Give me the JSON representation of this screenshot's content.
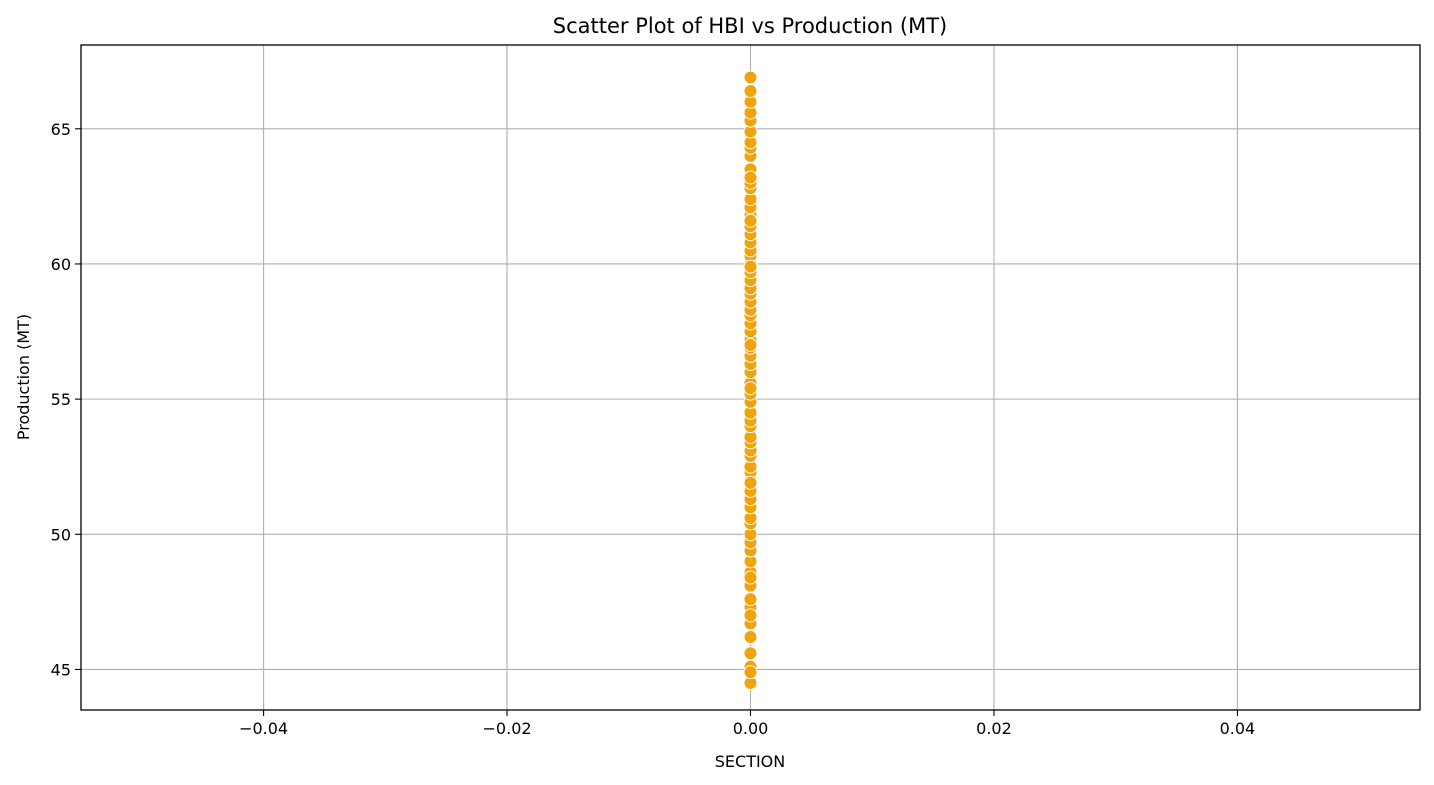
{
  "chart_data": {
    "type": "scatter",
    "title": "Scatter Plot of HBI vs Production (MT)",
    "xlabel": "SECTION",
    "ylabel": "Production (MT)",
    "xlim": [
      -0.055,
      0.055
    ],
    "ylim": [
      43.5,
      68.1
    ],
    "xticks": [
      -0.04,
      -0.02,
      0.0,
      0.02,
      0.04
    ],
    "xtick_labels": [
      "−0.04",
      "−0.02",
      "0.00",
      "0.02",
      "0.04"
    ],
    "yticks": [
      45,
      50,
      55,
      60,
      65
    ],
    "ytick_labels": [
      "45",
      "50",
      "55",
      "60",
      "65"
    ],
    "grid": true,
    "marker_color": "#f0a30a",
    "marker_edge_color": "#ffffff",
    "series": [
      {
        "x": [
          0,
          0,
          0,
          0,
          0,
          0,
          0,
          0,
          0,
          0,
          0,
          0,
          0,
          0,
          0,
          0,
          0,
          0,
          0,
          0,
          0,
          0,
          0,
          0,
          0,
          0,
          0,
          0,
          0,
          0,
          0,
          0,
          0,
          0,
          0,
          0,
          0,
          0,
          0,
          0,
          0,
          0,
          0,
          0,
          0,
          0,
          0,
          0,
          0,
          0,
          0,
          0,
          0,
          0,
          0,
          0,
          0,
          0,
          0,
          0,
          0,
          0,
          0,
          0,
          0,
          0,
          0,
          0,
          0,
          0,
          0,
          0,
          0,
          0,
          0,
          0
        ],
        "y": [
          44.5,
          45.1,
          45.6,
          46.2,
          46.7,
          47.3,
          47.6,
          48.1,
          48.6,
          49.0,
          49.4,
          49.7,
          50.0,
          50.4,
          50.6,
          51.0,
          51.3,
          51.6,
          52.0,
          52.3,
          52.5,
          52.9,
          53.1,
          53.4,
          53.6,
          54.0,
          54.2,
          54.5,
          54.9,
          55.2,
          55.6,
          56.0,
          56.3,
          56.6,
          56.9,
          57.2,
          57.5,
          57.8,
          58.1,
          58.3,
          58.6,
          58.9,
          59.1,
          59.4,
          59.7,
          60.0,
          60.3,
          60.5,
          60.8,
          61.1,
          61.4,
          61.8,
          62.1,
          62.4,
          62.8,
          63.0,
          63.3,
          63.5,
          64.0,
          64.3,
          64.5,
          64.9,
          65.3,
          65.6,
          66.0,
          66.4,
          66.9,
          44.9,
          47.0,
          48.4,
          51.9,
          55.4,
          57.0,
          59.9,
          61.6,
          63.2
        ]
      }
    ]
  }
}
